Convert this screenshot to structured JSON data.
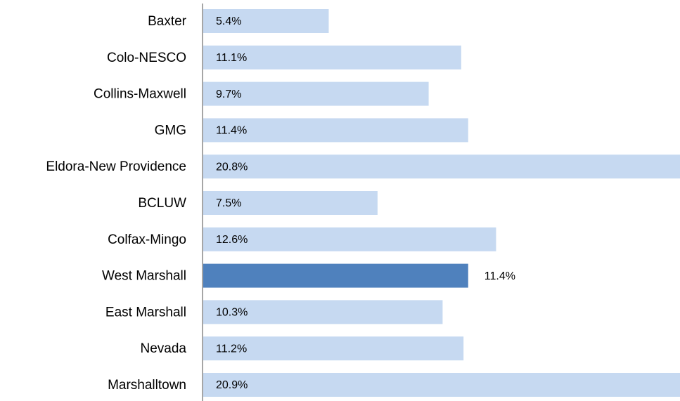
{
  "chart_data": {
    "type": "bar",
    "orientation": "horizontal",
    "categories": [
      "Baxter",
      "Colo-NESCO",
      "Collins-Maxwell",
      "GMG",
      "Eldora-New Providence",
      "BCLUW",
      "Colfax-Mingo",
      "West Marshall",
      "East Marshall",
      "Nevada",
      "Marshalltown"
    ],
    "values": [
      5.4,
      11.1,
      9.7,
      11.4,
      20.8,
      7.5,
      12.6,
      11.4,
      10.3,
      11.2,
      20.9
    ],
    "value_labels": [
      "5.4%",
      "11.1%",
      "9.7%",
      "11.4%",
      "20.8%",
      "7.5%",
      "12.6%",
      "11.4%",
      "10.3%",
      "11.2%",
      "20.9%"
    ],
    "colors": [
      "#c6d9f1",
      "#c6d9f1",
      "#c6d9f1",
      "#c6d9f1",
      "#c6d9f1",
      "#c6d9f1",
      "#c6d9f1",
      "#4f81bd",
      "#c6d9f1",
      "#c6d9f1",
      "#c6d9f1"
    ]
  }
}
